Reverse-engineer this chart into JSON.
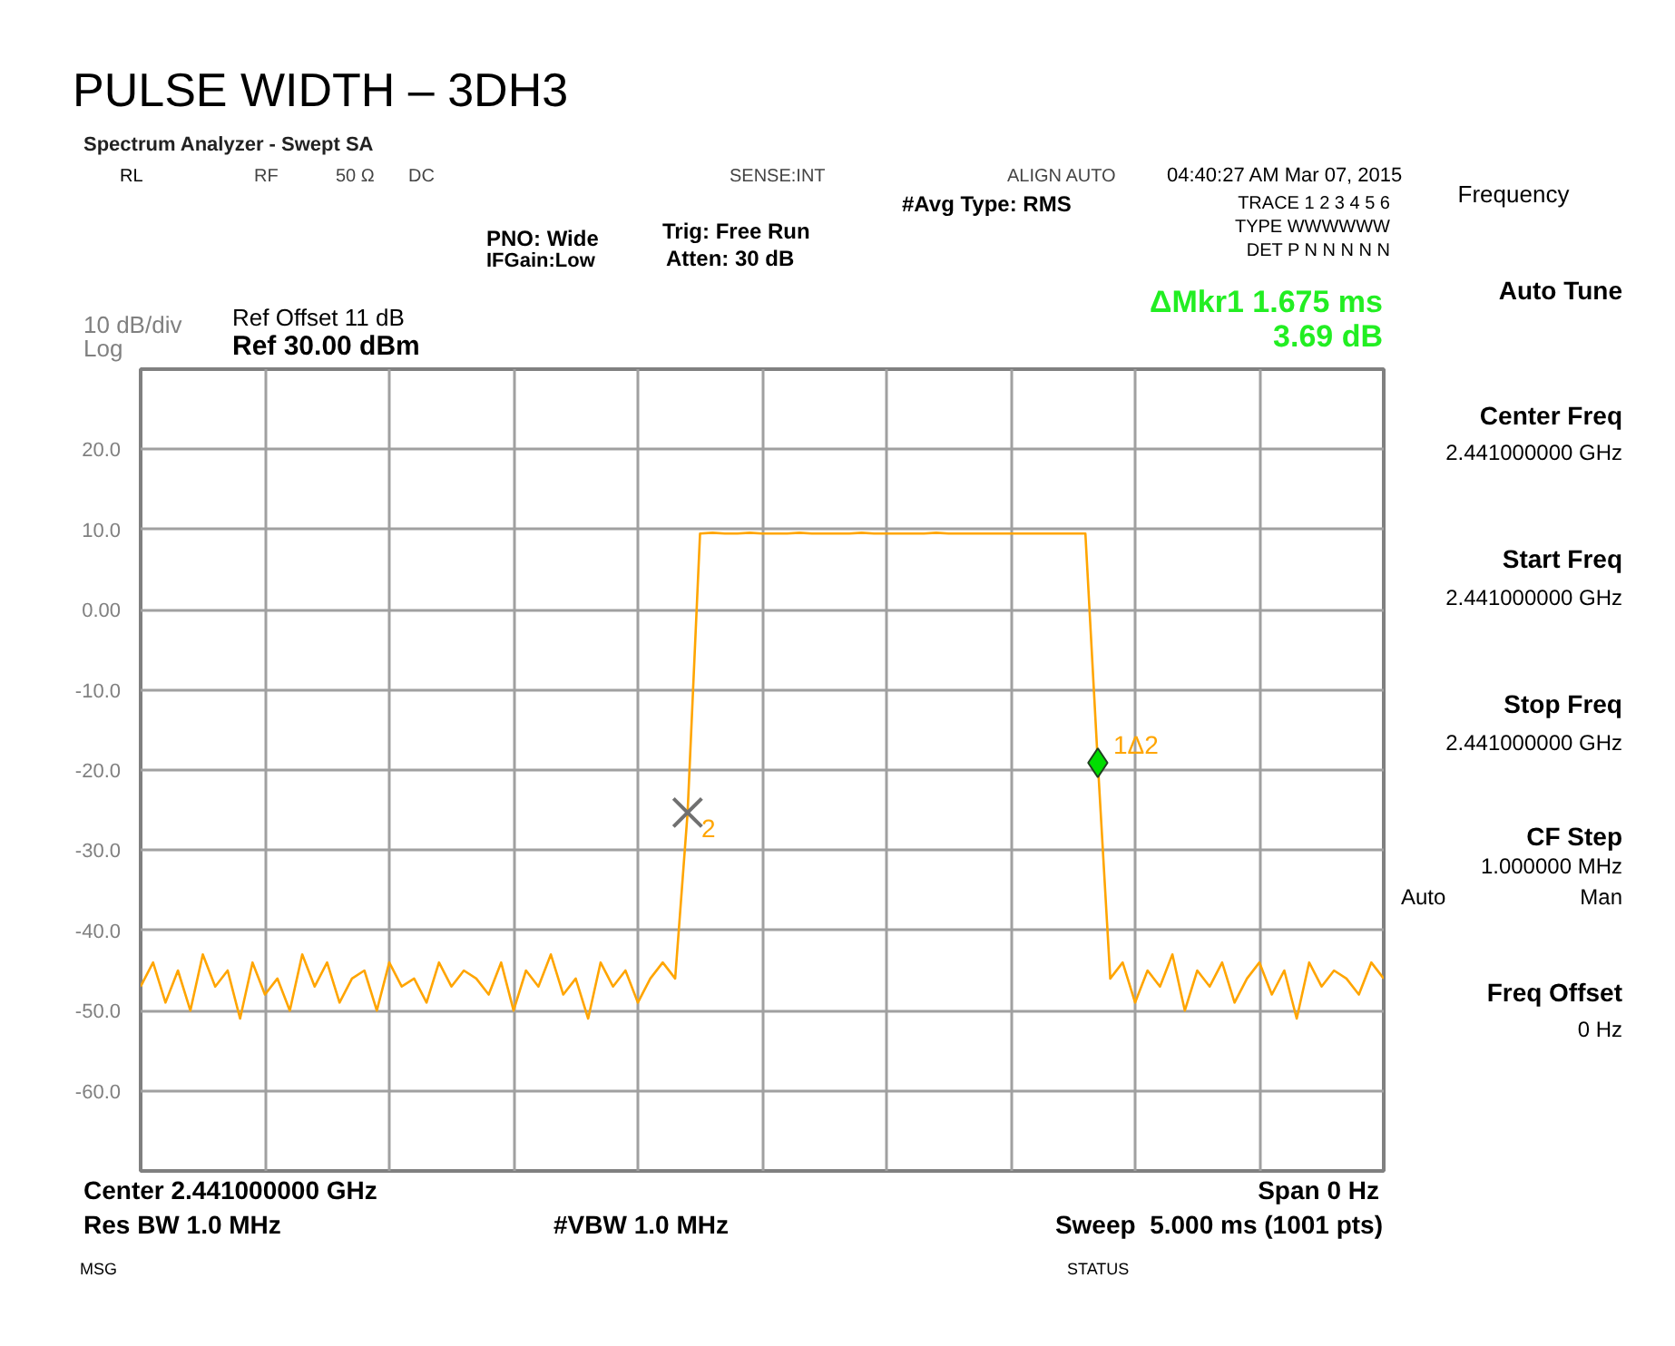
{
  "chart_data": {
    "type": "line",
    "title": "PULSE WIDTH – 3DH3",
    "categories": [
      null,
      null,
      null,
      null,
      null,
      null,
      null,
      null,
      null,
      null,
      null,
      null,
      null,
      null,
      null,
      null,
      null,
      null,
      null,
      null,
      null,
      null,
      null,
      null,
      null,
      null,
      null,
      null,
      null,
      null,
      null,
      null,
      null,
      null,
      null,
      null,
      null,
      null,
      null,
      null,
      null,
      null,
      null,
      null,
      null,
      null,
      null,
      null,
      null,
      null,
      null,
      null,
      null,
      null,
      null,
      null,
      null,
      null,
      null,
      null,
      null,
      null,
      null,
      null,
      null,
      null,
      null,
      null,
      null,
      null,
      null,
      null,
      null,
      null,
      null,
      null,
      null,
      null,
      null,
      null,
      null,
      null,
      null,
      null,
      null,
      null,
      null,
      null,
      null,
      null,
      null,
      null,
      null,
      null,
      null,
      null,
      null,
      null,
      null,
      null,
      null
    ],
    "series": [
      {
        "color": "#ffa500",
        "values": [
          -47,
          -44,
          -49,
          -45,
          -50,
          -43,
          -47,
          -45,
          -51,
          -44,
          -48,
          -46,
          -50,
          -43,
          -47,
          -44,
          -49,
          -46,
          -45,
          -50,
          -44,
          -47,
          -46,
          -49,
          -44,
          -47,
          -45,
          -46,
          -48,
          -44,
          -50,
          -45,
          -47,
          -43,
          -48,
          -46,
          -51,
          -44,
          -47,
          -45,
          -49,
          -46,
          -44,
          -46,
          -25.3,
          9.5,
          9.6,
          9.5,
          9.5,
          9.6,
          9.5,
          9.5,
          9.5,
          9.6,
          9.5,
          9.5,
          9.5,
          9.5,
          9.6,
          9.5,
          9.5,
          9.5,
          9.5,
          9.5,
          9.6,
          9.5,
          9.5,
          9.5,
          9.5,
          9.5,
          9.5,
          9.5,
          9.5,
          9.5,
          9.5,
          9.5,
          9.5,
          -19.1,
          -46,
          -44,
          -49,
          -45,
          -47,
          -43,
          -50,
          -45,
          -47,
          -44,
          -49,
          -46,
          -44,
          -48,
          -45,
          -51,
          -44,
          -47,
          -45,
          -46,
          -48,
          -44,
          -46
        ]
      },
      {
        "type": "scatter",
        "marker": "cross",
        "color": "#707070",
        "values": [
          null,
          null,
          null,
          null,
          null,
          null,
          null,
          null,
          null,
          null,
          null,
          null,
          null,
          null,
          null,
          null,
          null,
          null,
          null,
          null,
          null,
          null,
          null,
          null,
          null,
          null,
          null,
          null,
          null,
          null,
          null,
          null,
          null,
          null,
          null,
          null,
          null,
          null,
          null,
          null,
          null,
          null,
          null,
          null,
          -25.3,
          null,
          null,
          null,
          null,
          null,
          null,
          null,
          null,
          null,
          null,
          null,
          null,
          null,
          null,
          null,
          null,
          null,
          null,
          null,
          null,
          null,
          null,
          null,
          null,
          null,
          null,
          null,
          null,
          null,
          null,
          null,
          null,
          null,
          null,
          null,
          null,
          null,
          null,
          null,
          null,
          null,
          null,
          null,
          null,
          null,
          null,
          null,
          null,
          null,
          null,
          null,
          null,
          null,
          null,
          null,
          null
        ]
      },
      {
        "type": "scatter",
        "marker": "diamond",
        "color": "#00dd00",
        "values": [
          null,
          null,
          null,
          null,
          null,
          null,
          null,
          null,
          null,
          null,
          null,
          null,
          null,
          null,
          null,
          null,
          null,
          null,
          null,
          null,
          null,
          null,
          null,
          null,
          null,
          null,
          null,
          null,
          null,
          null,
          null,
          null,
          null,
          null,
          null,
          null,
          null,
          null,
          null,
          null,
          null,
          null,
          null,
          null,
          null,
          null,
          null,
          null,
          null,
          null,
          null,
          null,
          null,
          null,
          null,
          null,
          null,
          null,
          null,
          null,
          null,
          null,
          null,
          null,
          null,
          null,
          null,
          null,
          null,
          null,
          null,
          null,
          null,
          null,
          null,
          null,
          null,
          -19.1,
          null,
          null,
          null,
          null,
          null,
          null,
          null,
          null,
          null,
          null,
          null,
          null,
          null,
          null,
          null,
          null,
          null,
          null,
          null,
          null,
          null,
          null,
          null
        ]
      }
    ],
    "ylim": [
      -70,
      30
    ],
    "yticks": [
      {
        "value": 30,
        "label": null
      },
      {
        "value": 20,
        "label": "20.0"
      },
      {
        "value": 10,
        "label": "10.0"
      },
      {
        "value": 0,
        "label": "0.00"
      },
      {
        "value": -10,
        "label": "-10.0"
      },
      {
        "value": -20,
        "label": "-20.0"
      },
      {
        "value": -30,
        "label": "-30.0"
      },
      {
        "value": -40,
        "label": "-40.0"
      },
      {
        "value": -50,
        "label": "-50.0"
      },
      {
        "value": -60,
        "label": "-60.0"
      },
      {
        "value": -70,
        "label": null
      }
    ],
    "grid": true,
    "annotations": [
      "Spectrum Analyzer - Swept SA",
      "RL",
      "RF",
      "50 Ω",
      "DC",
      "SENSE:INT",
      "ALIGN AUTO",
      "04:40:27 AM Mar 07, 2015",
      "#Avg Type: RMS",
      "TRACE 1 2 3 4 5 6",
      "TYPE WWWWWW",
      "DET P N N N N N",
      "PNO: Wide",
      "IFGain:Low",
      "Trig: Free Run",
      "Atten: 30 dB",
      "Ref Offset 11 dB",
      "Ref 30.00 dBm",
      "10 dB/div",
      "Log",
      "ΔMkr1 1.675 ms",
      "3.69 dB",
      "Center 2.441000000 GHz",
      "Res BW 1.0 MHz",
      "#VBW 1.0 MHz",
      "Span 0 Hz",
      "Sweep  5.000 ms (1001 pts)",
      "MSG",
      "STATUS",
      "Frequency",
      "Auto Tune",
      "Center Freq",
      "2.441000000 GHz",
      "Start Freq",
      "2.441000000 GHz",
      "Stop Freq",
      "2.441000000 GHz",
      "CF Step",
      "1.000000 MHz",
      "Auto",
      "Man",
      "Freq Offset",
      "0 Hz",
      "2",
      "1Δ2"
    ]
  }
}
